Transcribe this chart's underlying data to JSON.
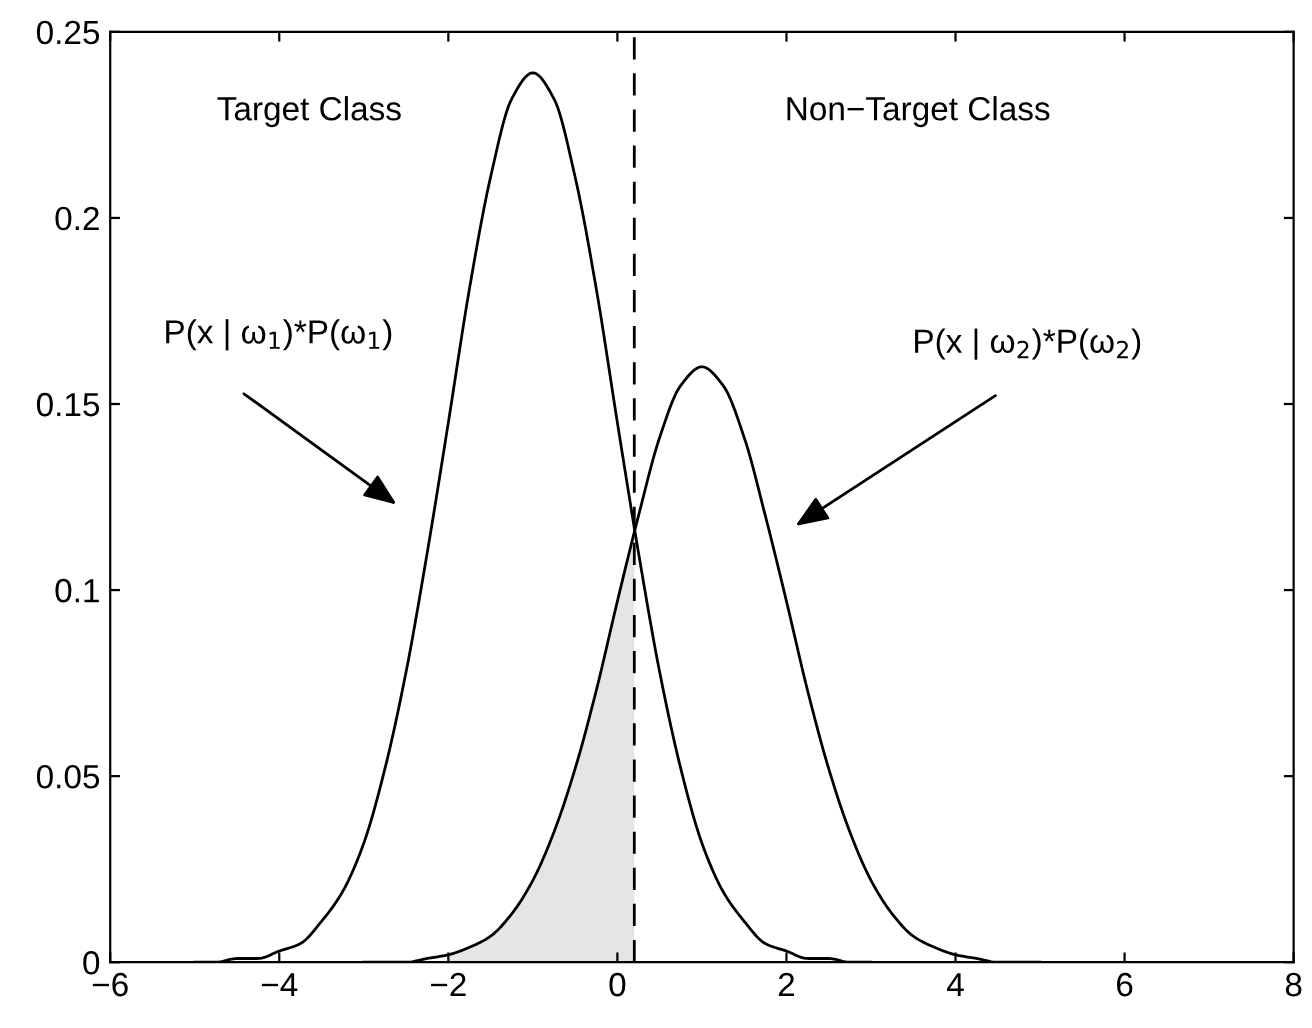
{
  "chart_data": {
    "type": "line",
    "series": [
      {
        "color": "#000000",
        "x": [
          -5,
          -4.75,
          -4.5,
          -4.25,
          -4,
          -3.75,
          -3.5,
          -3.25,
          -3,
          -2.75,
          -2.5,
          -2.25,
          -2,
          -1.75,
          -1.5,
          -1.25,
          -1,
          -0.75,
          -0.5,
          -0.25,
          0,
          0.25,
          0.5,
          0.75,
          1,
          1.25,
          1.5,
          1.75,
          2,
          2.25,
          2.5,
          2.75,
          3
        ],
        "values": [
          0.0,
          0.0,
          0.001,
          0.001,
          0.003,
          0.005,
          0.011,
          0.019,
          0.032,
          0.052,
          0.078,
          0.11,
          0.145,
          0.181,
          0.211,
          0.232,
          0.239,
          0.232,
          0.211,
          0.181,
          0.145,
          0.11,
          0.078,
          0.052,
          0.032,
          0.019,
          0.011,
          0.005,
          0.003,
          0.001,
          0.001,
          0.0,
          0.0
        ]
      },
      {
        "color": "#000000",
        "x": [
          -3,
          -2.75,
          -2.5,
          -2.25,
          -2,
          -1.75,
          -1.5,
          -1.25,
          -1,
          -0.75,
          -0.5,
          -0.25,
          0,
          0.25,
          0.5,
          0.75,
          1,
          1.25,
          1.5,
          1.75,
          2,
          2.25,
          2.5,
          2.75,
          3,
          3.25,
          3.5,
          3.75,
          4,
          4.25,
          4.5,
          4.75,
          5
        ],
        "values": [
          0.0,
          0.0,
          0.0,
          0.001,
          0.002,
          0.004,
          0.007,
          0.013,
          0.022,
          0.035,
          0.052,
          0.073,
          0.097,
          0.12,
          0.141,
          0.155,
          0.16,
          0.155,
          0.141,
          0.12,
          0.097,
          0.073,
          0.052,
          0.035,
          0.022,
          0.013,
          0.007,
          0.004,
          0.002,
          0.001,
          0.0,
          0.0,
          0.0
        ]
      },
      {
        "type": "area",
        "color": "#e5e5e5",
        "x": [
          -2,
          -1.75,
          -1.5,
          -1.25,
          -1,
          -0.75,
          -0.5,
          -0.25,
          0,
          0.2
        ],
        "values": [
          0.002,
          0.004,
          0.007,
          0.013,
          0.022,
          0.035,
          0.052,
          0.073,
          0.097,
          0.116
        ]
      }
    ],
    "ref_lines": [
      {
        "axis": "x",
        "value": 0.2,
        "color": "#000000",
        "line_style": "dashed"
      }
    ],
    "annotations": [
      "Target Class",
      "Non−Target Class",
      "P(x | ω$_{1}$)*P(ω$_{1}$)",
      "P(x | ω$_{2}$)*P(ω$_{2}$)"
    ],
    "xlim": [
      -6,
      8
    ],
    "ylim": [
      0,
      0.25
    ],
    "xticks": [
      {
        "value": -6,
        "label": "−6"
      },
      {
        "value": -4,
        "label": "−4"
      },
      {
        "value": -2,
        "label": "−2"
      },
      0,
      2,
      4,
      6,
      8
    ],
    "yticks": [
      0,
      0.05,
      0.1,
      0.15,
      0.2,
      0.25
    ],
    "grid": false,
    "legend": false,
    "marker": "none",
    "line_style": "solid"
  }
}
